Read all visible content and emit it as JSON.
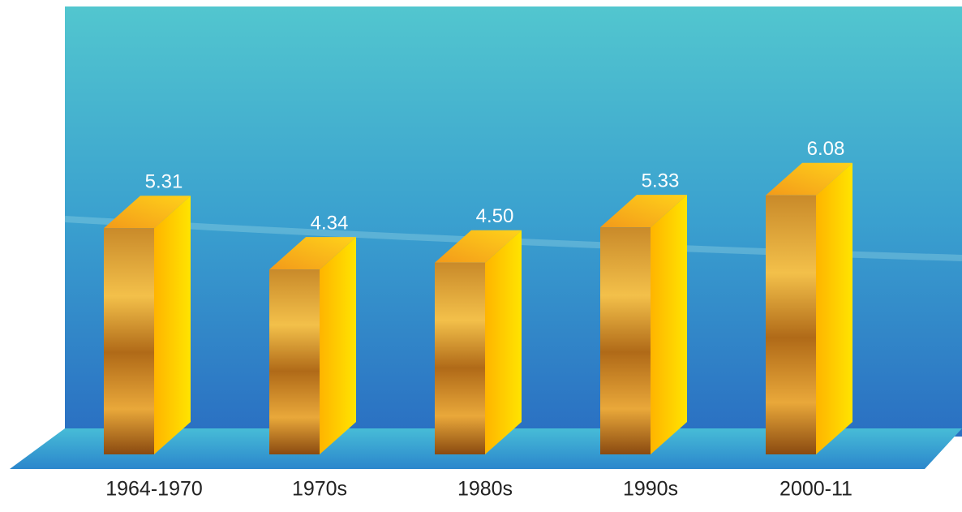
{
  "chart_data": {
    "type": "bar3d",
    "categories": [
      "1964-1970",
      "1970s",
      "1980s",
      "1990s",
      "2000-11"
    ],
    "values": [
      5.31,
      4.34,
      4.5,
      5.33,
      6.08
    ],
    "value_labels": [
      "5.31",
      "4.34",
      "4.50",
      "5.33",
      "6.08"
    ]
  }
}
